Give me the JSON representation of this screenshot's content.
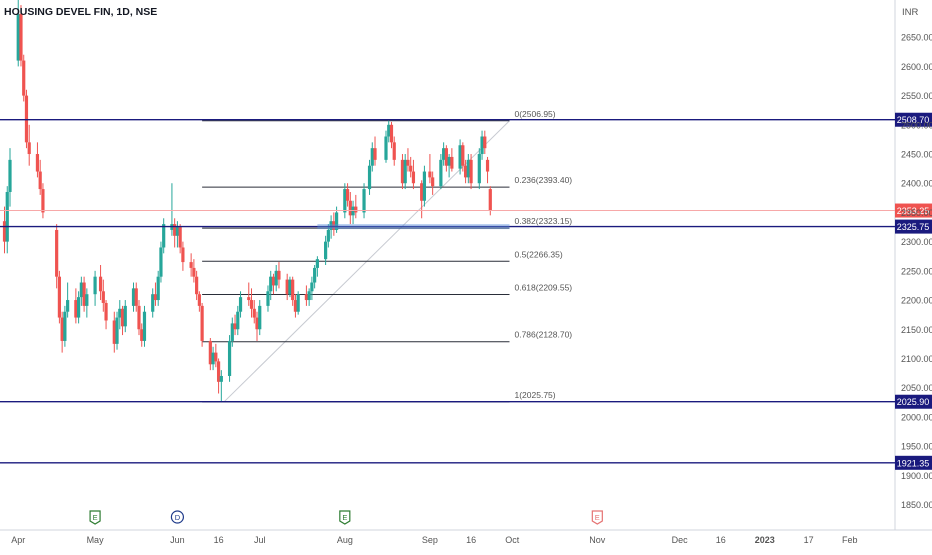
{
  "header": {
    "title": "HOUSING DEVEL FIN, 1D, NSE"
  },
  "currency": "INR",
  "colors": {
    "up": "#26a69a",
    "down": "#ef5350",
    "fib": "#2a2e39",
    "hline": "#1a1a7e",
    "price_line": "#f7a8a8",
    "label_bg": "#1a1a7e",
    "last_price_bg": "#ef5350",
    "axis_text": "#555555"
  },
  "chart_data": {
    "type": "candlestick",
    "ylim": [
      1820,
      2700
    ],
    "y_ticks": [
      "2650.00",
      "2600.00",
      "2550.00",
      "2500.00",
      "2450.00",
      "2400.00",
      "2350.00",
      "2300.00",
      "2250.00",
      "2200.00",
      "2150.00",
      "2100.00",
      "2050.00",
      "2000.00",
      "1950.00",
      "1900.00",
      "1850.00"
    ],
    "x_labels": [
      "Apr",
      "May",
      "Jun",
      "16",
      "Jul",
      "Aug",
      "Sep",
      "16",
      "Oct",
      "Nov",
      "Dec",
      "16",
      "2023",
      "17",
      "Feb"
    ],
    "x_range": [
      "2022-04-01",
      "2023-02-12"
    ],
    "x_label_dates": [
      "2022-04-04",
      "2022-05-02",
      "2022-06-01",
      "2022-06-16",
      "2022-07-01",
      "2022-08-01",
      "2022-09-01",
      "2022-09-16",
      "2022-10-01",
      "2022-11-01",
      "2022-12-01",
      "2022-12-16",
      "2023-01-01",
      "2023-01-17",
      "2023-02-01"
    ],
    "events": [
      {
        "label": "E",
        "date": "2022-05-02"
      },
      {
        "label": "D",
        "date": "2022-06-01"
      },
      {
        "label": "E",
        "date": "2022-08-01"
      },
      {
        "label": "E",
        "date": "2022-11-01"
      }
    ],
    "fib_levels": [
      {
        "label": "0(2506.95)",
        "value": 2506.95
      },
      {
        "label": "0.236(2393.40)",
        "value": 2393.4
      },
      {
        "label": "0.382(2323.15)",
        "value": 2323.15
      },
      {
        "label": "0.5(2266.35)",
        "value": 2266.35
      },
      {
        "label": "0.618(2209.55)",
        "value": 2209.55
      },
      {
        "label": "0.786(2128.70)",
        "value": 2128.7
      },
      {
        "label": "1(2025.75)",
        "value": 2025.75
      }
    ],
    "fib_start_date": "2022-06-10",
    "fib_end_date": "2022-09-30",
    "horizontal_lines": [
      {
        "label": "2508.70",
        "value": 2508.7
      },
      {
        "label": "2325.75",
        "value": 2325.75
      },
      {
        "label": "2025.90",
        "value": 2025.9
      },
      {
        "label": "1921.35",
        "value": 1921.35
      }
    ],
    "last_price": {
      "label": "2353.25",
      "value": 2353.25
    },
    "candles": [
      {
        "d": "2022-03-30",
        "o": 2335,
        "h": 2360,
        "l": 2280,
        "c": 2300
      },
      {
        "d": "2022-03-31",
        "o": 2300,
        "h": 2395,
        "l": 2280,
        "c": 2385
      },
      {
        "d": "2022-04-01",
        "o": 2385,
        "h": 2460,
        "l": 2360,
        "c": 2440
      },
      {
        "d": "2022-04-04",
        "o": 2610,
        "h": 2720,
        "l": 2600,
        "c": 2690
      },
      {
        "d": "2022-04-05",
        "o": 2690,
        "h": 2705,
        "l": 2600,
        "c": 2610
      },
      {
        "d": "2022-04-06",
        "o": 2610,
        "h": 2620,
        "l": 2540,
        "c": 2550
      },
      {
        "d": "2022-04-07",
        "o": 2550,
        "h": 2560,
        "l": 2460,
        "c": 2470
      },
      {
        "d": "2022-04-08",
        "o": 2470,
        "h": 2500,
        "l": 2430,
        "c": 2450
      },
      {
        "d": "2022-04-11",
        "o": 2450,
        "h": 2470,
        "l": 2410,
        "c": 2420
      },
      {
        "d": "2022-04-12",
        "o": 2420,
        "h": 2440,
        "l": 2380,
        "c": 2390
      },
      {
        "d": "2022-04-13",
        "o": 2390,
        "h": 2400,
        "l": 2340,
        "c": 2350
      },
      {
        "d": "2022-04-18",
        "o": 2320,
        "h": 2330,
        "l": 2220,
        "c": 2240
      },
      {
        "d": "2022-04-19",
        "o": 2240,
        "h": 2250,
        "l": 2160,
        "c": 2170
      },
      {
        "d": "2022-04-20",
        "o": 2170,
        "h": 2180,
        "l": 2110,
        "c": 2130
      },
      {
        "d": "2022-04-21",
        "o": 2130,
        "h": 2190,
        "l": 2120,
        "c": 2180
      },
      {
        "d": "2022-04-22",
        "o": 2180,
        "h": 2230,
        "l": 2170,
        "c": 2200
      },
      {
        "d": "2022-04-25",
        "o": 2200,
        "h": 2220,
        "l": 2160,
        "c": 2170
      },
      {
        "d": "2022-04-26",
        "o": 2170,
        "h": 2215,
        "l": 2160,
        "c": 2205
      },
      {
        "d": "2022-04-27",
        "o": 2205,
        "h": 2240,
        "l": 2190,
        "c": 2230
      },
      {
        "d": "2022-04-28",
        "o": 2230,
        "h": 2240,
        "l": 2180,
        "c": 2190
      },
      {
        "d": "2022-04-29",
        "o": 2190,
        "h": 2220,
        "l": 2170,
        "c": 2210
      },
      {
        "d": "2022-05-02",
        "o": 2210,
        "h": 2250,
        "l": 2190,
        "c": 2240
      },
      {
        "d": "2022-05-04",
        "o": 2240,
        "h": 2260,
        "l": 2200,
        "c": 2215
      },
      {
        "d": "2022-05-05",
        "o": 2215,
        "h": 2235,
        "l": 2180,
        "c": 2195
      },
      {
        "d": "2022-05-06",
        "o": 2195,
        "h": 2200,
        "l": 2150,
        "c": 2165
      },
      {
        "d": "2022-05-09",
        "o": 2165,
        "h": 2180,
        "l": 2110,
        "c": 2125
      },
      {
        "d": "2022-05-10",
        "o": 2125,
        "h": 2180,
        "l": 2115,
        "c": 2170
      },
      {
        "d": "2022-05-11",
        "o": 2170,
        "h": 2200,
        "l": 2150,
        "c": 2185
      },
      {
        "d": "2022-05-12",
        "o": 2185,
        "h": 2190,
        "l": 2140,
        "c": 2155
      },
      {
        "d": "2022-05-13",
        "o": 2155,
        "h": 2200,
        "l": 2145,
        "c": 2190
      },
      {
        "d": "2022-05-16",
        "o": 2190,
        "h": 2230,
        "l": 2180,
        "c": 2220
      },
      {
        "d": "2022-05-17",
        "o": 2220,
        "h": 2230,
        "l": 2180,
        "c": 2190
      },
      {
        "d": "2022-05-18",
        "o": 2190,
        "h": 2200,
        "l": 2140,
        "c": 2150
      },
      {
        "d": "2022-05-19",
        "o": 2150,
        "h": 2160,
        "l": 2120,
        "c": 2130
      },
      {
        "d": "2022-05-20",
        "o": 2130,
        "h": 2190,
        "l": 2120,
        "c": 2180
      },
      {
        "d": "2022-05-23",
        "o": 2180,
        "h": 2220,
        "l": 2170,
        "c": 2210
      },
      {
        "d": "2022-05-24",
        "o": 2210,
        "h": 2230,
        "l": 2190,
        "c": 2200
      },
      {
        "d": "2022-05-25",
        "o": 2200,
        "h": 2250,
        "l": 2190,
        "c": 2240
      },
      {
        "d": "2022-05-26",
        "o": 2240,
        "h": 2300,
        "l": 2230,
        "c": 2290
      },
      {
        "d": "2022-05-27",
        "o": 2290,
        "h": 2340,
        "l": 2280,
        "c": 2330
      },
      {
        "d": "2022-05-30",
        "o": 2320,
        "h": 2400,
        "l": 2310,
        "c": 2330
      },
      {
        "d": "2022-05-31",
        "o": 2330,
        "h": 2340,
        "l": 2290,
        "c": 2310
      },
      {
        "d": "2022-06-01",
        "o": 2310,
        "h": 2335,
        "l": 2290,
        "c": 2325
      },
      {
        "d": "2022-06-02",
        "o": 2325,
        "h": 2330,
        "l": 2280,
        "c": 2290
      },
      {
        "d": "2022-06-03",
        "o": 2290,
        "h": 2300,
        "l": 2250,
        "c": 2265
      },
      {
        "d": "2022-06-06",
        "o": 2265,
        "h": 2280,
        "l": 2240,
        "c": 2255
      },
      {
        "d": "2022-06-07",
        "o": 2255,
        "h": 2270,
        "l": 2230,
        "c": 2240
      },
      {
        "d": "2022-06-08",
        "o": 2240,
        "h": 2250,
        "l": 2200,
        "c": 2210
      },
      {
        "d": "2022-06-09",
        "o": 2210,
        "h": 2215,
        "l": 2180,
        "c": 2190
      },
      {
        "d": "2022-06-10",
        "o": 2190,
        "h": 2195,
        "l": 2120,
        "c": 2130
      },
      {
        "d": "2022-06-13",
        "o": 2130,
        "h": 2135,
        "l": 2080,
        "c": 2090
      },
      {
        "d": "2022-06-14",
        "o": 2090,
        "h": 2120,
        "l": 2080,
        "c": 2110
      },
      {
        "d": "2022-06-15",
        "o": 2110,
        "h": 2125,
        "l": 2085,
        "c": 2095
      },
      {
        "d": "2022-06-16",
        "o": 2095,
        "h": 2100,
        "l": 2040,
        "c": 2060
      },
      {
        "d": "2022-06-17",
        "o": 2060,
        "h": 2080,
        "l": 2026,
        "c": 2070
      },
      {
        "d": "2022-06-20",
        "o": 2070,
        "h": 2140,
        "l": 2060,
        "c": 2130
      },
      {
        "d": "2022-06-21",
        "o": 2130,
        "h": 2170,
        "l": 2120,
        "c": 2160
      },
      {
        "d": "2022-06-22",
        "o": 2160,
        "h": 2175,
        "l": 2140,
        "c": 2150
      },
      {
        "d": "2022-06-23",
        "o": 2150,
        "h": 2190,
        "l": 2140,
        "c": 2180
      },
      {
        "d": "2022-06-24",
        "o": 2180,
        "h": 2215,
        "l": 2170,
        "c": 2205
      },
      {
        "d": "2022-06-27",
        "o": 2205,
        "h": 2230,
        "l": 2190,
        "c": 2200
      },
      {
        "d": "2022-06-28",
        "o": 2200,
        "h": 2220,
        "l": 2170,
        "c": 2185
      },
      {
        "d": "2022-06-29",
        "o": 2185,
        "h": 2200,
        "l": 2160,
        "c": 2170
      },
      {
        "d": "2022-06-30",
        "o": 2170,
        "h": 2180,
        "l": 2130,
        "c": 2150
      },
      {
        "d": "2022-07-01",
        "o": 2150,
        "h": 2200,
        "l": 2140,
        "c": 2190
      },
      {
        "d": "2022-07-04",
        "o": 2190,
        "h": 2225,
        "l": 2180,
        "c": 2215
      },
      {
        "d": "2022-07-05",
        "o": 2215,
        "h": 2250,
        "l": 2200,
        "c": 2240
      },
      {
        "d": "2022-07-06",
        "o": 2240,
        "h": 2245,
        "l": 2210,
        "c": 2225
      },
      {
        "d": "2022-07-07",
        "o": 2225,
        "h": 2260,
        "l": 2215,
        "c": 2250
      },
      {
        "d": "2022-07-08",
        "o": 2250,
        "h": 2265,
        "l": 2220,
        "c": 2235
      },
      {
        "d": "2022-07-11",
        "o": 2235,
        "h": 2245,
        "l": 2200,
        "c": 2210
      },
      {
        "d": "2022-07-12",
        "o": 2210,
        "h": 2240,
        "l": 2205,
        "c": 2235
      },
      {
        "d": "2022-07-13",
        "o": 2235,
        "h": 2240,
        "l": 2190,
        "c": 2200
      },
      {
        "d": "2022-07-14",
        "o": 2200,
        "h": 2210,
        "l": 2170,
        "c": 2180
      },
      {
        "d": "2022-07-15",
        "o": 2180,
        "h": 2215,
        "l": 2175,
        "c": 2210
      },
      {
        "d": "2022-07-18",
        "o": 2210,
        "h": 2225,
        "l": 2190,
        "c": 2200
      },
      {
        "d": "2022-07-19",
        "o": 2200,
        "h": 2220,
        "l": 2190,
        "c": 2215
      },
      {
        "d": "2022-07-20",
        "o": 2215,
        "h": 2240,
        "l": 2200,
        "c": 2230
      },
      {
        "d": "2022-07-21",
        "o": 2230,
        "h": 2260,
        "l": 2220,
        "c": 2255
      },
      {
        "d": "2022-07-22",
        "o": 2255,
        "h": 2275,
        "l": 2240,
        "c": 2270
      },
      {
        "d": "2022-07-25",
        "o": 2270,
        "h": 2310,
        "l": 2260,
        "c": 2300
      },
      {
        "d": "2022-07-26",
        "o": 2300,
        "h": 2330,
        "l": 2290,
        "c": 2320
      },
      {
        "d": "2022-07-27",
        "o": 2320,
        "h": 2345,
        "l": 2305,
        "c": 2335
      },
      {
        "d": "2022-07-28",
        "o": 2335,
        "h": 2350,
        "l": 2310,
        "c": 2320
      },
      {
        "d": "2022-07-29",
        "o": 2320,
        "h": 2360,
        "l": 2315,
        "c": 2350
      },
      {
        "d": "2022-08-01",
        "o": 2350,
        "h": 2400,
        "l": 2340,
        "c": 2390
      },
      {
        "d": "2022-08-02",
        "o": 2390,
        "h": 2400,
        "l": 2360,
        "c": 2370
      },
      {
        "d": "2022-08-03",
        "o": 2370,
        "h": 2385,
        "l": 2330,
        "c": 2345
      },
      {
        "d": "2022-08-04",
        "o": 2345,
        "h": 2370,
        "l": 2330,
        "c": 2360
      },
      {
        "d": "2022-08-05",
        "o": 2360,
        "h": 2380,
        "l": 2340,
        "c": 2350
      },
      {
        "d": "2022-08-08",
        "o": 2350,
        "h": 2400,
        "l": 2340,
        "c": 2390
      },
      {
        "d": "2022-08-10",
        "o": 2390,
        "h": 2440,
        "l": 2380,
        "c": 2430
      },
      {
        "d": "2022-08-11",
        "o": 2430,
        "h": 2470,
        "l": 2420,
        "c": 2460
      },
      {
        "d": "2022-08-12",
        "o": 2460,
        "h": 2480,
        "l": 2430,
        "c": 2440
      },
      {
        "d": "2022-08-16",
        "o": 2440,
        "h": 2490,
        "l": 2435,
        "c": 2480
      },
      {
        "d": "2022-08-17",
        "o": 2480,
        "h": 2507,
        "l": 2470,
        "c": 2500
      },
      {
        "d": "2022-08-18",
        "o": 2500,
        "h": 2505,
        "l": 2460,
        "c": 2470
      },
      {
        "d": "2022-08-19",
        "o": 2470,
        "h": 2480,
        "l": 2430,
        "c": 2440
      },
      {
        "d": "2022-08-22",
        "o": 2440,
        "h": 2450,
        "l": 2390,
        "c": 2400
      },
      {
        "d": "2022-08-23",
        "o": 2400,
        "h": 2450,
        "l": 2390,
        "c": 2440
      },
      {
        "d": "2022-08-24",
        "o": 2440,
        "h": 2460,
        "l": 2420,
        "c": 2430
      },
      {
        "d": "2022-08-25",
        "o": 2430,
        "h": 2445,
        "l": 2410,
        "c": 2420
      },
      {
        "d": "2022-08-26",
        "o": 2420,
        "h": 2440,
        "l": 2390,
        "c": 2400
      },
      {
        "d": "2022-08-29",
        "o": 2400,
        "h": 2405,
        "l": 2340,
        "c": 2370
      },
      {
        "d": "2022-08-30",
        "o": 2370,
        "h": 2430,
        "l": 2360,
        "c": 2420
      },
      {
        "d": "2022-09-01",
        "o": 2420,
        "h": 2450,
        "l": 2400,
        "c": 2410
      },
      {
        "d": "2022-09-02",
        "o": 2410,
        "h": 2420,
        "l": 2380,
        "c": 2395
      },
      {
        "d": "2022-09-05",
        "o": 2395,
        "h": 2450,
        "l": 2390,
        "c": 2440
      },
      {
        "d": "2022-09-06",
        "o": 2440,
        "h": 2470,
        "l": 2430,
        "c": 2460
      },
      {
        "d": "2022-09-07",
        "o": 2460,
        "h": 2465,
        "l": 2420,
        "c": 2430
      },
      {
        "d": "2022-09-08",
        "o": 2430,
        "h": 2450,
        "l": 2410,
        "c": 2445
      },
      {
        "d": "2022-09-09",
        "o": 2445,
        "h": 2460,
        "l": 2420,
        "c": 2425
      },
      {
        "d": "2022-09-12",
        "o": 2425,
        "h": 2475,
        "l": 2415,
        "c": 2465
      },
      {
        "d": "2022-09-13",
        "o": 2465,
        "h": 2470,
        "l": 2420,
        "c": 2430
      },
      {
        "d": "2022-09-14",
        "o": 2430,
        "h": 2440,
        "l": 2400,
        "c": 2410
      },
      {
        "d": "2022-09-15",
        "o": 2410,
        "h": 2450,
        "l": 2400,
        "c": 2440
      },
      {
        "d": "2022-09-16",
        "o": 2440,
        "h": 2450,
        "l": 2390,
        "c": 2400
      },
      {
        "d": "2022-09-19",
        "o": 2400,
        "h": 2460,
        "l": 2390,
        "c": 2450
      },
      {
        "d": "2022-09-20",
        "o": 2450,
        "h": 2490,
        "l": 2440,
        "c": 2480
      },
      {
        "d": "2022-09-21",
        "o": 2480,
        "h": 2490,
        "l": 2450,
        "c": 2460
      },
      {
        "d": "2022-09-22",
        "o": 2440,
        "h": 2445,
        "l": 2400,
        "c": 2420
      },
      {
        "d": "2022-09-23",
        "o": 2390,
        "h": 2395,
        "l": 2345,
        "c": 2353.25
      }
    ]
  }
}
